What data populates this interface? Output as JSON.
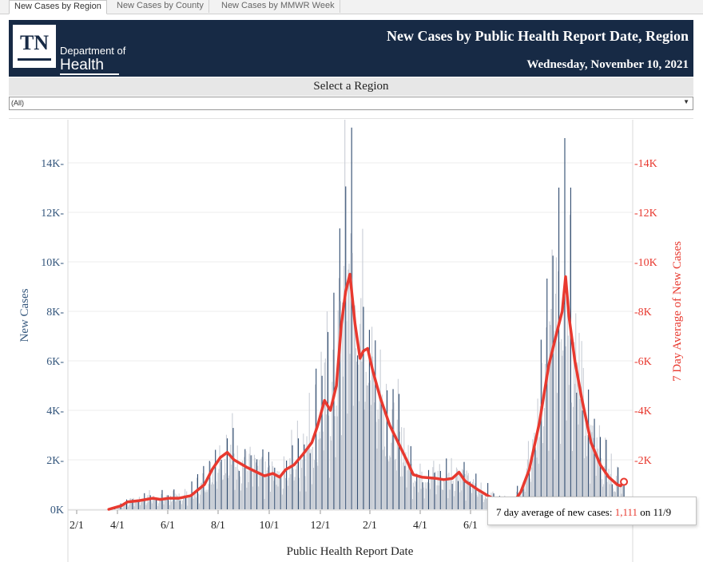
{
  "tabs": [
    {
      "label": "New Cases by Region",
      "active": true
    },
    {
      "label": "New Cases by County",
      "active": false
    },
    {
      "label": "New Cases by MMWR Week",
      "active": false
    }
  ],
  "header": {
    "logo_text": "TN",
    "dept_line1": "Department of",
    "dept_line2": "Health",
    "title": "New Cases by Public Health Report Date, Region",
    "date": "Wednesday, November 10, 2021",
    "background": "#172a45"
  },
  "region_filter": {
    "label": "Select a Region",
    "value": "(All)"
  },
  "tooltip": {
    "prefix": "7 day average of new cases: ",
    "value": "1,111",
    "on": " on ",
    "date": "11/9"
  },
  "colors": {
    "left_axis": "#35577d",
    "right_axis": "#e8392f",
    "bar_light": "#c9ced6",
    "bar_dark": "#2e4a6e",
    "line": "#e8392f"
  },
  "chart_data": {
    "type": "bar+line",
    "xlabel": "Public Health Report Date",
    "ylabel_left": "New Cases",
    "ylabel_right": "7 Day Average of New Cases",
    "x_ticks": [
      "2/1",
      "4/1",
      "6/1",
      "8/1",
      "10/1",
      "12/1",
      "2/1",
      "4/1",
      "6/1"
    ],
    "y_ticks": [
      "0K",
      "2K",
      "4K",
      "6K",
      "8K",
      "10K",
      "12K",
      "14K"
    ],
    "y2_ticks": [
      "2K",
      "4K",
      "6K",
      "8K",
      "10K",
      "12K",
      "14K"
    ],
    "ylim": [
      0,
      16000
    ],
    "x_start": "2020-02-01",
    "x_end": "2021-11-09",
    "series": [
      {
        "name": "New Cases",
        "type": "bar",
        "peak_value": 15000,
        "peak_date": "2021-08-31"
      },
      {
        "name": "7 Day Average of New Cases",
        "type": "line",
        "points": [
          [
            "2020-03-10",
            0
          ],
          [
            "2020-03-25",
            150
          ],
          [
            "2020-04-01",
            300
          ],
          [
            "2020-04-15",
            350
          ],
          [
            "2020-05-01",
            450
          ],
          [
            "2020-05-10",
            400
          ],
          [
            "2020-05-20",
            450
          ],
          [
            "2020-06-01",
            450
          ],
          [
            "2020-06-15",
            550
          ],
          [
            "2020-07-01",
            1000
          ],
          [
            "2020-07-10",
            1600
          ],
          [
            "2020-07-20",
            2100
          ],
          [
            "2020-07-28",
            2300
          ],
          [
            "2020-08-05",
            2000
          ],
          [
            "2020-08-20",
            1700
          ],
          [
            "2020-09-01",
            1500
          ],
          [
            "2020-09-10",
            1350
          ],
          [
            "2020-09-20",
            1450
          ],
          [
            "2020-09-28",
            1300
          ],
          [
            "2020-10-05",
            1600
          ],
          [
            "2020-10-15",
            1800
          ],
          [
            "2020-10-25",
            2200
          ],
          [
            "2020-11-05",
            2700
          ],
          [
            "2020-11-12",
            3400
          ],
          [
            "2020-11-20",
            4400
          ],
          [
            "2020-11-27",
            4000
          ],
          [
            "2020-12-04",
            5000
          ],
          [
            "2020-12-10",
            7500
          ],
          [
            "2020-12-15",
            8800
          ],
          [
            "2020-12-20",
            9500
          ],
          [
            "2020-12-26",
            7500
          ],
          [
            "2021-01-01",
            6100
          ],
          [
            "2021-01-05",
            6400
          ],
          [
            "2021-01-10",
            6500
          ],
          [
            "2021-01-16",
            5600
          ],
          [
            "2021-01-25",
            4500
          ],
          [
            "2021-02-05",
            3400
          ],
          [
            "2021-02-15",
            2700
          ],
          [
            "2021-02-25",
            2000
          ],
          [
            "2021-03-05",
            1400
          ],
          [
            "2021-03-15",
            1300
          ],
          [
            "2021-04-01",
            1250
          ],
          [
            "2021-04-10",
            1200
          ],
          [
            "2021-04-20",
            1250
          ],
          [
            "2021-04-28",
            1500
          ],
          [
            "2021-05-05",
            1150
          ],
          [
            "2021-05-20",
            800
          ],
          [
            "2021-06-01",
            550
          ],
          [
            "2021-06-15",
            300
          ],
          [
            "2021-07-01",
            250
          ],
          [
            "2021-07-10",
            700
          ],
          [
            "2021-07-20",
            1600
          ],
          [
            "2021-08-01",
            3500
          ],
          [
            "2021-08-12",
            5800
          ],
          [
            "2021-08-22",
            7200
          ],
          [
            "2021-08-28",
            8000
          ],
          [
            "2021-09-01",
            9400
          ],
          [
            "2021-09-05",
            7800
          ],
          [
            "2021-09-12",
            6000
          ],
          [
            "2021-09-20",
            4500
          ],
          [
            "2021-10-01",
            2700
          ],
          [
            "2021-10-12",
            1800
          ],
          [
            "2021-10-22",
            1300
          ],
          [
            "2021-11-01",
            1000
          ],
          [
            "2021-11-05",
            950
          ],
          [
            "2021-11-09",
            1111
          ]
        ]
      }
    ],
    "grid": true,
    "dual_axis": true
  }
}
